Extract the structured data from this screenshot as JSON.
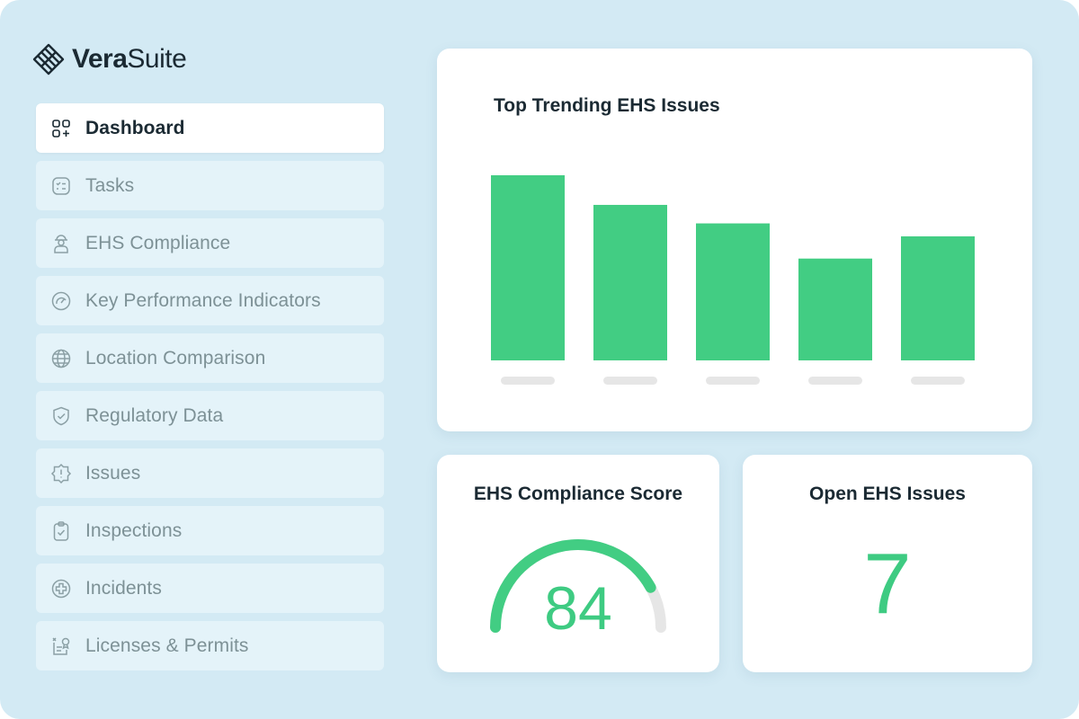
{
  "brand": {
    "name_bold": "Vera",
    "name_light": "Suite"
  },
  "nav": {
    "items": [
      {
        "label": "Dashboard",
        "icon": "dashboard-icon",
        "active": true
      },
      {
        "label": "Tasks",
        "icon": "tasks-icon"
      },
      {
        "label": "EHS Compliance",
        "icon": "worker-icon"
      },
      {
        "label": "Key Performance Indicators",
        "icon": "gauge-icon"
      },
      {
        "label": "Location Comparison",
        "icon": "globe-icon"
      },
      {
        "label": "Regulatory Data",
        "icon": "shield-check-icon"
      },
      {
        "label": "Issues",
        "icon": "alert-badge-icon"
      },
      {
        "label": "Inspections",
        "icon": "clipboard-check-icon"
      },
      {
        "label": "Incidents",
        "icon": "medical-cross-icon"
      },
      {
        "label": "Licenses & Permits",
        "icon": "license-icon"
      }
    ]
  },
  "trend": {
    "title": "Top Trending EHS Issues"
  },
  "chart_data": {
    "type": "bar",
    "title": "Top Trending EHS Issues",
    "categories": [
      "",
      "",
      "",
      "",
      ""
    ],
    "values": [
      100,
      84,
      74,
      55,
      67
    ],
    "ylim": [
      0,
      100
    ],
    "grid": false,
    "color": "#42cd83"
  },
  "score": {
    "title": "EHS Compliance Score",
    "value": "84",
    "fraction": 0.84
  },
  "open_issues": {
    "title": "Open EHS Issues",
    "value": "7"
  },
  "colors": {
    "accent": "#42cd83",
    "track": "#e6e6e6",
    "background": "#d3eaf4",
    "text": "#1b2a33",
    "muted": "#7d9196"
  }
}
